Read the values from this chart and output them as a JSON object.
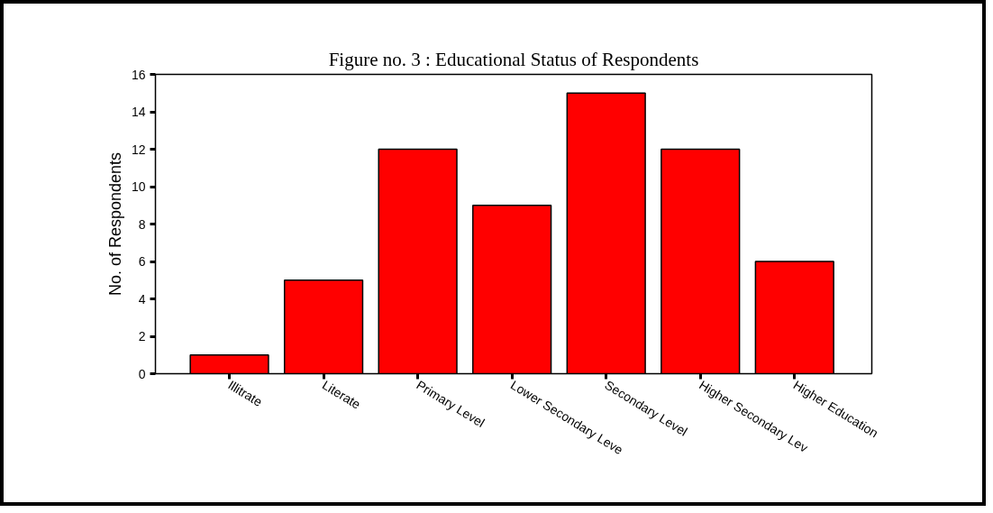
{
  "chart_data": {
    "type": "bar",
    "title": "Figure no. 3 : Educational Status of Respondents",
    "ylabel": "No. of Respondents",
    "categories": [
      "Illitrate",
      "Literate",
      "Primary Level",
      "Lower Secondary Leve",
      "Secondary Level",
      "Higher Secondary Lev",
      "Higher Education"
    ],
    "values": [
      1,
      5,
      12,
      9,
      15,
      12,
      6
    ],
    "color": "#ff0000",
    "ylim": [
      0,
      16
    ],
    "yticks": [
      0,
      2,
      4,
      6,
      8,
      10,
      12,
      14,
      16
    ],
    "grid": false
  }
}
